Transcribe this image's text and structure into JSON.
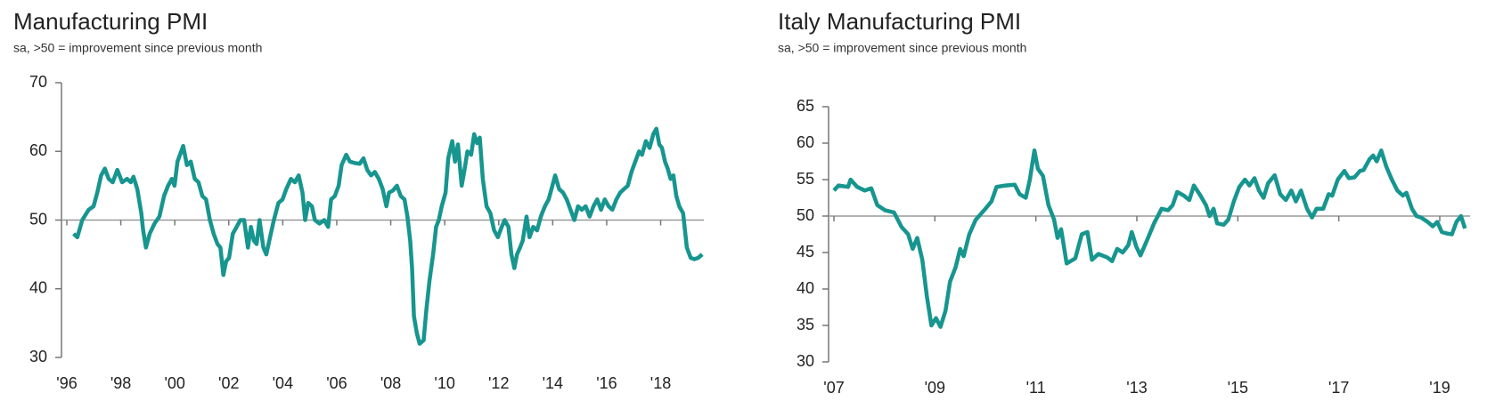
{
  "chart_data": [
    {
      "type": "line",
      "title": "Manufacturing PMI",
      "subtitle": "sa, >50 = improvement since previous month",
      "x": [
        1996.25,
        1996.39,
        1996.57,
        1996.81,
        1996.99,
        1997.13,
        1997.27,
        1997.41,
        1997.55,
        1997.7,
        1997.87,
        1998.05,
        1998.23,
        1998.37,
        1998.47,
        1998.61,
        1998.76,
        1998.83,
        1998.93,
        1999.07,
        1999.25,
        1999.43,
        1999.6,
        1999.75,
        1999.89,
        1999.99,
        2000.1,
        2000.31,
        2000.45,
        2000.59,
        2000.74,
        2000.88,
        2001.02,
        2001.16,
        2001.3,
        2001.44,
        2001.58,
        2001.69,
        2001.8,
        2001.9,
        2002.01,
        2002.15,
        2002.29,
        2002.43,
        2002.57,
        2002.71,
        2002.82,
        2002.93,
        2003.03,
        2003.14,
        2003.28,
        2003.39,
        2003.53,
        2003.67,
        2003.84,
        2003.99,
        2004.13,
        2004.3,
        2004.45,
        2004.59,
        2004.73,
        2004.83,
        2004.94,
        2005.08,
        2005.19,
        2005.36,
        2005.54,
        2005.68,
        2005.79,
        2005.93,
        2006.07,
        2006.18,
        2006.35,
        2006.49,
        2006.67,
        2006.85,
        2006.99,
        2007.13,
        2007.27,
        2007.41,
        2007.56,
        2007.7,
        2007.84,
        2007.94,
        2008.08,
        2008.23,
        2008.37,
        2008.51,
        2008.62,
        2008.72,
        2008.79,
        2008.86,
        2008.97,
        2009.07,
        2009.22,
        2009.32,
        2009.43,
        2009.57,
        2009.68,
        2009.78,
        2009.89,
        2010.03,
        2010.13,
        2010.28,
        2010.38,
        2010.49,
        2010.63,
        2010.74,
        2010.84,
        2010.98,
        2011.09,
        2011.2,
        2011.3,
        2011.41,
        2011.55,
        2011.69,
        2011.83,
        2011.97,
        2012.11,
        2012.22,
        2012.36,
        2012.47,
        2012.58,
        2012.68,
        2012.79,
        2012.89,
        2013.03,
        2013.14,
        2013.28,
        2013.42,
        2013.56,
        2013.71,
        2013.85,
        2013.99,
        2014.09,
        2014.24,
        2014.38,
        2014.52,
        2014.66,
        2014.8,
        2014.94,
        2015.08,
        2015.22,
        2015.37,
        2015.51,
        2015.65,
        2015.79,
        2015.93,
        2016.07,
        2016.21,
        2016.36,
        2016.5,
        2016.64,
        2016.78,
        2016.92,
        2017.06,
        2017.2,
        2017.31,
        2017.45,
        2017.59,
        2017.73,
        2017.84,
        2017.95,
        2018.05,
        2018.16,
        2018.26,
        2018.37,
        2018.47,
        2018.58,
        2018.69,
        2018.83,
        2018.97,
        2019.11,
        2019.25,
        2019.39,
        2019.54
      ],
      "series": [
        {
          "color": "#17958f",
          "values": [
            48,
            47.5,
            50,
            51.5,
            52,
            54,
            56.5,
            57.5,
            56,
            55.5,
            57.3,
            55.5,
            56,
            55.5,
            56.3,
            54.5,
            51,
            48.5,
            46,
            48,
            49.5,
            50.5,
            53.5,
            55,
            56,
            55,
            58.5,
            60.8,
            58,
            58.5,
            56,
            55.5,
            53.5,
            53,
            50,
            48,
            46.5,
            46,
            42,
            44,
            44.5,
            48,
            49,
            50,
            50,
            46,
            49,
            47,
            46.5,
            50,
            46,
            45,
            47.5,
            50,
            52.5,
            53,
            54.5,
            56,
            55.5,
            56.5,
            54,
            50,
            52.5,
            52,
            50,
            49.5,
            50,
            49,
            53,
            53.5,
            55,
            58,
            59.5,
            58.5,
            58.3,
            58.2,
            59,
            57.3,
            56.5,
            57,
            56,
            54.5,
            52,
            54,
            54.3,
            55,
            53.5,
            53,
            50.5,
            47,
            43,
            36,
            33.5,
            32,
            32.5,
            37,
            41,
            45,
            49,
            50,
            52,
            54,
            59,
            61.5,
            58.5,
            61,
            55,
            57.5,
            60,
            59.5,
            62.5,
            61.2,
            62,
            56,
            52,
            51,
            48.5,
            47.5,
            49,
            50,
            49,
            45,
            43,
            45,
            46,
            47,
            50.5,
            47.5,
            49,
            48.5,
            50.5,
            52,
            53,
            55,
            56.5,
            54.5,
            54,
            53,
            51.5,
            50,
            52,
            51.5,
            52,
            50.5,
            52,
            53,
            51.5,
            53,
            52,
            51.5,
            53,
            54,
            54.5,
            55,
            57,
            58.5,
            60,
            59.5,
            61.5,
            60.5,
            62.5,
            63.3,
            61,
            60.5,
            58.5,
            57.5,
            56,
            56.5,
            53.5,
            52,
            51,
            46,
            44.5,
            44.3,
            44.5,
            45
          ]
        }
      ],
      "xlim": [
        1996,
        2019.6
      ],
      "xticks": [
        {
          "value": 1996,
          "label": "'96"
        },
        {
          "value": 1998,
          "label": "'98"
        },
        {
          "value": 2000,
          "label": "'00"
        },
        {
          "value": 2002,
          "label": "'02"
        },
        {
          "value": 2004,
          "label": "'04"
        },
        {
          "value": 2006,
          "label": "'06"
        },
        {
          "value": 2008,
          "label": "'08"
        },
        {
          "value": 2010,
          "label": "'10"
        },
        {
          "value": 2012,
          "label": "'12"
        },
        {
          "value": 2014,
          "label": "'14"
        },
        {
          "value": 2016,
          "label": "'16"
        },
        {
          "value": 2018,
          "label": "'18"
        }
      ],
      "ylim": [
        30,
        70
      ],
      "yticks": [
        30,
        40,
        50,
        60,
        70
      ],
      "reference_line": 50
    },
    {
      "type": "line",
      "title": "Italy Manufacturing PMI",
      "subtitle": "sa, >50 = improvement since previous month",
      "x": [
        2007.0,
        2007.09,
        2007.28,
        2007.33,
        2007.46,
        2007.61,
        2007.74,
        2007.86,
        2008.01,
        2008.19,
        2008.34,
        2008.47,
        2008.56,
        2008.65,
        2008.75,
        2008.84,
        2008.93,
        2009.02,
        2009.11,
        2009.21,
        2009.3,
        2009.41,
        2009.5,
        2009.57,
        2009.68,
        2009.81,
        2010.0,
        2010.12,
        2010.22,
        2010.4,
        2010.58,
        2010.68,
        2010.8,
        2010.88,
        2010.97,
        2011.04,
        2011.14,
        2011.25,
        2011.36,
        2011.43,
        2011.5,
        2011.61,
        2011.78,
        2011.91,
        2012.02,
        2012.11,
        2012.24,
        2012.42,
        2012.51,
        2012.61,
        2012.72,
        2012.83,
        2012.9,
        2012.99,
        2013.07,
        2013.19,
        2013.34,
        2013.49,
        2013.62,
        2013.71,
        2013.8,
        2013.93,
        2014.04,
        2014.13,
        2014.26,
        2014.37,
        2014.44,
        2014.52,
        2014.59,
        2014.72,
        2014.81,
        2014.92,
        2015.03,
        2015.14,
        2015.23,
        2015.33,
        2015.42,
        2015.51,
        2015.6,
        2015.73,
        2015.84,
        2015.95,
        2016.06,
        2016.15,
        2016.25,
        2016.37,
        2016.47,
        2016.56,
        2016.69,
        2016.8,
        2016.87,
        2016.98,
        2017.11,
        2017.2,
        2017.31,
        2017.42,
        2017.49,
        2017.61,
        2017.68,
        2017.75,
        2017.84,
        2017.94,
        2018.05,
        2018.16,
        2018.27,
        2018.34,
        2018.45,
        2018.54,
        2018.63,
        2018.76,
        2018.86,
        2018.95,
        2019.04,
        2019.15,
        2019.24,
        2019.33,
        2019.42,
        2019.5
      ],
      "series": [
        {
          "color": "#17958f",
          "values": [
            53.5,
            54.2,
            54,
            55,
            54,
            53.5,
            53.8,
            51.5,
            50.8,
            50.5,
            48.5,
            47.5,
            45.5,
            47,
            44,
            39,
            35,
            36,
            34.8,
            37,
            41,
            43,
            45.5,
            44.5,
            47.5,
            49.5,
            51,
            52,
            54,
            54.2,
            54.3,
            53,
            52.5,
            55,
            59,
            56.5,
            55.5,
            51.5,
            49.5,
            47,
            48.2,
            43.5,
            44.2,
            47.5,
            47.8,
            44,
            44.8,
            44.3,
            43.8,
            45.5,
            45,
            46,
            47.8,
            45.8,
            44.6,
            46.5,
            49,
            51,
            50.8,
            51.5,
            53.3,
            52.8,
            52.2,
            54.2,
            52.8,
            51.5,
            50,
            51,
            49,
            48.8,
            49.5,
            52,
            54,
            55,
            54.2,
            55.2,
            53.5,
            52.5,
            54.5,
            55.6,
            53,
            52.2,
            53.5,
            52,
            53.5,
            51,
            49.8,
            51,
            51,
            53,
            52.8,
            55,
            56.2,
            55.2,
            55.3,
            56.2,
            56.3,
            57.8,
            58.3,
            57.5,
            59,
            56.8,
            55,
            53.5,
            52.8,
            53.2,
            51,
            50,
            49.8,
            49.2,
            48.6,
            49.2,
            47.8,
            47.6,
            47.5,
            49.2,
            50,
            48.3
          ]
        }
      ],
      "xlim": [
        2007,
        2019.6
      ],
      "xticks": [
        {
          "value": 2007,
          "label": "'07"
        },
        {
          "value": 2009,
          "label": "'09"
        },
        {
          "value": 2011,
          "label": "'11"
        },
        {
          "value": 2013,
          "label": "'13"
        },
        {
          "value": 2015,
          "label": "'15"
        },
        {
          "value": 2017,
          "label": "'17"
        },
        {
          "value": 2019,
          "label": "'19"
        }
      ],
      "ylim": [
        30,
        65
      ],
      "yticks": [
        30,
        35,
        40,
        45,
        50,
        55,
        60,
        65
      ],
      "reference_line": 50
    }
  ]
}
